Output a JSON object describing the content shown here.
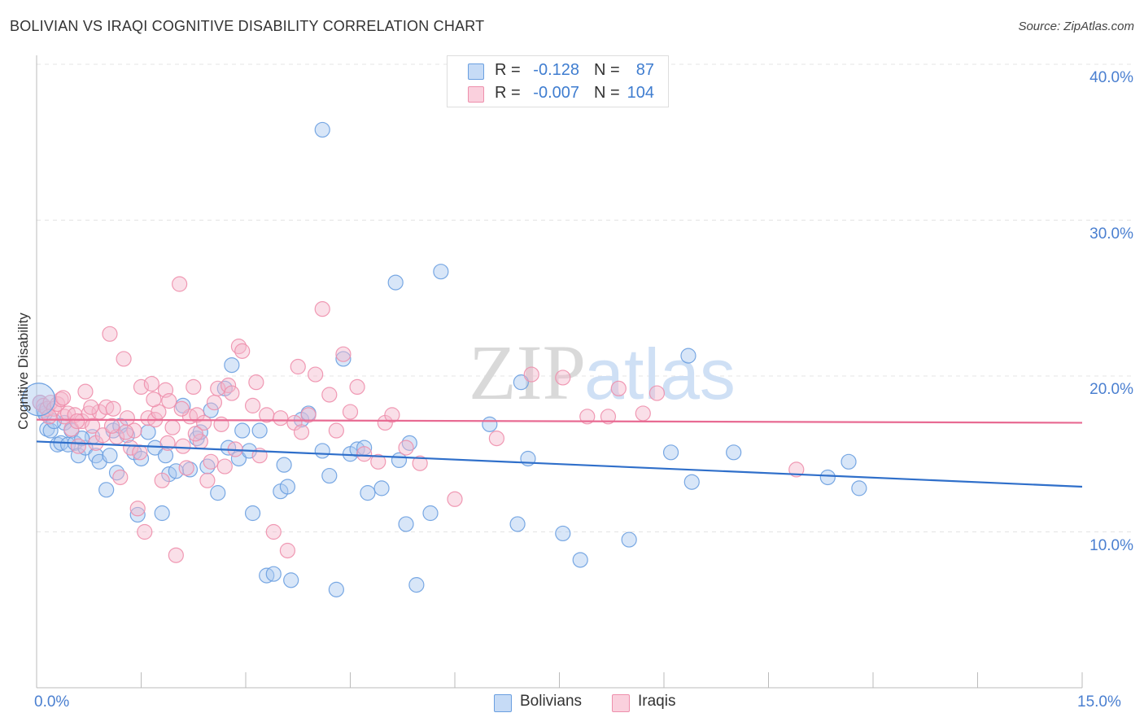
{
  "title": "BOLIVIAN VS IRAQI COGNITIVE DISABILITY CORRELATION CHART",
  "source": "Source: ZipAtlas.com",
  "legend": {
    "rows": [
      {
        "r_label": "R =",
        "r_value": "-0.128",
        "n_label": "N =",
        "n_value": "87",
        "color": "#a9c8f0"
      },
      {
        "r_label": "R =",
        "r_value": "-0.007",
        "n_label": "N =",
        "n_value": "104",
        "color": "#f5b8cb"
      }
    ]
  },
  "bottom_legend": [
    {
      "label": "Bolivians",
      "color": "#a9c8f0"
    },
    {
      "label": "Iraqis",
      "color": "#f5b8cb"
    }
  ],
  "chart_data": {
    "type": "scatter",
    "title": "BOLIVIAN VS IRAQI COGNITIVE DISABILITY CORRELATION CHART",
    "xlabel": "",
    "ylabel": "Cognitive Disability",
    "xlim": [
      0,
      15
    ],
    "ylim": [
      0,
      41
    ],
    "x_tick_labels": [
      "0.0%",
      "15.0%"
    ],
    "y_ticks": [
      10,
      20,
      30,
      40
    ],
    "y_tick_labels": [
      "10.0%",
      "20.0%",
      "30.0%",
      "40.0%"
    ],
    "grid": true,
    "legend_position": "top-center",
    "watermark": "ZIPatlas",
    "series": [
      {
        "name": "Bolivians",
        "color": "#6a9fe0",
        "fill": "#a9c8f0",
        "trend": {
          "x": [
            0,
            15
          ],
          "y": [
            15.8,
            12.9
          ],
          "color": "#2f6fca"
        },
        "points": [
          [
            0.05,
            18.3
          ],
          [
            0.1,
            17.8
          ],
          [
            0.15,
            16.6
          ],
          [
            0.2,
            16.5
          ],
          [
            0.3,
            15.6
          ],
          [
            0.35,
            15.7
          ],
          [
            0.4,
            17.0
          ],
          [
            0.45,
            15.6
          ],
          [
            0.5,
            16.5
          ],
          [
            0.55,
            15.7
          ],
          [
            0.6,
            14.9
          ],
          [
            0.7,
            15.4
          ],
          [
            0.8,
            16.1
          ],
          [
            0.85,
            14.9
          ],
          [
            0.9,
            14.5
          ],
          [
            1.0,
            12.7
          ],
          [
            1.05,
            14.9
          ],
          [
            1.1,
            16.5
          ],
          [
            1.2,
            16.8
          ],
          [
            1.3,
            16.2
          ],
          [
            1.4,
            15.1
          ],
          [
            1.45,
            11.1
          ],
          [
            1.5,
            14.7
          ],
          [
            1.6,
            16.4
          ],
          [
            1.7,
            15.4
          ],
          [
            1.8,
            11.2
          ],
          [
            1.85,
            14.9
          ],
          [
            1.9,
            13.7
          ],
          [
            2.1,
            18.1
          ],
          [
            2.2,
            14.0
          ],
          [
            2.3,
            16.0
          ],
          [
            2.35,
            16.4
          ],
          [
            2.5,
            17.8
          ],
          [
            2.6,
            12.5
          ],
          [
            2.7,
            19.2
          ],
          [
            2.75,
            15.4
          ],
          [
            2.8,
            20.7
          ],
          [
            2.9,
            14.7
          ],
          [
            2.95,
            16.5
          ],
          [
            3.1,
            11.2
          ],
          [
            3.2,
            16.5
          ],
          [
            3.3,
            7.2
          ],
          [
            3.4,
            7.3
          ],
          [
            3.5,
            12.6
          ],
          [
            3.6,
            12.9
          ],
          [
            3.55,
            14.3
          ],
          [
            3.65,
            6.9
          ],
          [
            3.8,
            17.2
          ],
          [
            3.9,
            17.6
          ],
          [
            4.1,
            35.8
          ],
          [
            4.1,
            15.2
          ],
          [
            4.2,
            13.6
          ],
          [
            4.3,
            6.3
          ],
          [
            4.4,
            21.1
          ],
          [
            4.5,
            15.0
          ],
          [
            4.6,
            15.3
          ],
          [
            4.7,
            15.4
          ],
          [
            4.75,
            12.5
          ],
          [
            4.95,
            12.8
          ],
          [
            5.15,
            26.0
          ],
          [
            5.2,
            14.6
          ],
          [
            5.3,
            10.5
          ],
          [
            5.35,
            15.7
          ],
          [
            5.45,
            6.6
          ],
          [
            5.65,
            11.2
          ],
          [
            5.8,
            26.7
          ],
          [
            6.5,
            16.9
          ],
          [
            6.95,
            19.6
          ],
          [
            6.9,
            10.5
          ],
          [
            7.05,
            14.7
          ],
          [
            7.55,
            9.9
          ],
          [
            7.8,
            8.2
          ],
          [
            8.5,
            9.5
          ],
          [
            9.1,
            15.1
          ],
          [
            9.35,
            21.3
          ],
          [
            9.4,
            13.2
          ],
          [
            10.0,
            15.1
          ],
          [
            11.35,
            13.5
          ],
          [
            11.65,
            14.5
          ],
          [
            11.8,
            12.8
          ],
          [
            0.12,
            17.6
          ],
          [
            0.25,
            17.1
          ],
          [
            0.65,
            16.0
          ],
          [
            1.15,
            13.8
          ],
          [
            2.0,
            13.9
          ],
          [
            2.45,
            14.2
          ],
          [
            3.05,
            15.2
          ]
        ]
      },
      {
        "name": "Iraqis",
        "color": "#ee8fac",
        "fill": "#f5b8cb",
        "trend": {
          "x": [
            0,
            15
          ],
          "y": [
            17.2,
            17.0
          ],
          "color": "#e86b93"
        },
        "points": [
          [
            0.05,
            18.3
          ],
          [
            0.1,
            18.1
          ],
          [
            0.15,
            17.9
          ],
          [
            0.2,
            18.3
          ],
          [
            0.25,
            17.9
          ],
          [
            0.3,
            18.2
          ],
          [
            0.35,
            18.5
          ],
          [
            0.4,
            17.4
          ],
          [
            0.45,
            17.6
          ],
          [
            0.5,
            16.6
          ],
          [
            0.55,
            17.5
          ],
          [
            0.6,
            15.5
          ],
          [
            0.65,
            17.1
          ],
          [
            0.7,
            19.0
          ],
          [
            0.75,
            17.6
          ],
          [
            0.8,
            16.8
          ],
          [
            0.85,
            15.7
          ],
          [
            0.9,
            17.7
          ],
          [
            0.95,
            16.2
          ],
          [
            1.0,
            18.0
          ],
          [
            1.05,
            22.7
          ],
          [
            1.1,
            17.9
          ],
          [
            1.15,
            16.1
          ],
          [
            1.2,
            13.5
          ],
          [
            1.25,
            21.1
          ],
          [
            1.3,
            17.3
          ],
          [
            1.35,
            15.4
          ],
          [
            1.4,
            16.5
          ],
          [
            1.45,
            11.5
          ],
          [
            1.5,
            19.3
          ],
          [
            1.55,
            10.0
          ],
          [
            1.6,
            17.3
          ],
          [
            1.65,
            19.5
          ],
          [
            1.7,
            17.2
          ],
          [
            1.75,
            17.7
          ],
          [
            1.8,
            13.3
          ],
          [
            1.85,
            19.1
          ],
          [
            1.9,
            18.4
          ],
          [
            1.95,
            16.7
          ],
          [
            2.0,
            8.5
          ],
          [
            2.05,
            25.9
          ],
          [
            2.1,
            15.5
          ],
          [
            2.15,
            14.1
          ],
          [
            2.2,
            17.4
          ],
          [
            2.25,
            19.3
          ],
          [
            2.3,
            17.5
          ],
          [
            2.35,
            15.8
          ],
          [
            2.4,
            17.0
          ],
          [
            2.45,
            13.3
          ],
          [
            2.5,
            14.5
          ],
          [
            2.55,
            18.3
          ],
          [
            2.6,
            19.2
          ],
          [
            2.65,
            16.9
          ],
          [
            2.7,
            14.2
          ],
          [
            2.75,
            19.4
          ],
          [
            2.8,
            18.9
          ],
          [
            2.85,
            15.3
          ],
          [
            2.9,
            21.9
          ],
          [
            2.95,
            21.6
          ],
          [
            3.1,
            18.1
          ],
          [
            3.15,
            19.6
          ],
          [
            3.2,
            14.9
          ],
          [
            3.3,
            17.5
          ],
          [
            3.4,
            10.0
          ],
          [
            3.5,
            17.3
          ],
          [
            3.6,
            8.8
          ],
          [
            3.7,
            17.0
          ],
          [
            3.75,
            20.6
          ],
          [
            3.8,
            16.4
          ],
          [
            3.9,
            17.5
          ],
          [
            4.0,
            20.1
          ],
          [
            4.1,
            24.3
          ],
          [
            4.2,
            18.8
          ],
          [
            4.3,
            16.5
          ],
          [
            4.4,
            21.4
          ],
          [
            4.5,
            17.7
          ],
          [
            4.6,
            19.3
          ],
          [
            4.7,
            15.0
          ],
          [
            4.9,
            14.5
          ],
          [
            5.0,
            17.0
          ],
          [
            5.1,
            17.5
          ],
          [
            5.3,
            15.4
          ],
          [
            5.5,
            14.4
          ],
          [
            6.0,
            12.1
          ],
          [
            6.6,
            16.0
          ],
          [
            7.1,
            20.1
          ],
          [
            7.55,
            19.9
          ],
          [
            7.9,
            17.4
          ],
          [
            8.2,
            17.4
          ],
          [
            8.35,
            19.2
          ],
          [
            8.7,
            17.6
          ],
          [
            8.9,
            18.9
          ],
          [
            10.9,
            14.0
          ],
          [
            0.18,
            17.4
          ],
          [
            0.38,
            18.6
          ],
          [
            0.58,
            17.1
          ],
          [
            0.78,
            18.0
          ],
          [
            1.08,
            16.8
          ],
          [
            1.28,
            16.4
          ],
          [
            1.48,
            15.1
          ],
          [
            1.68,
            18.5
          ],
          [
            1.88,
            15.7
          ],
          [
            2.08,
            17.9
          ],
          [
            2.28,
            16.3
          ]
        ]
      }
    ]
  }
}
